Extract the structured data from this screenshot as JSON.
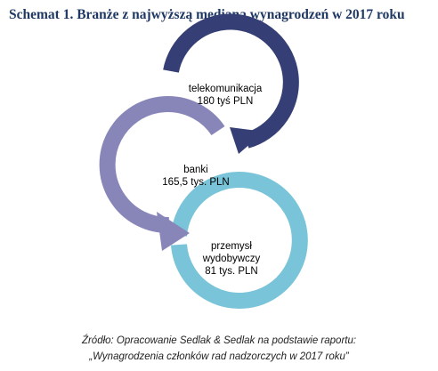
{
  "title": "Schemat 1. Branże z najwyższą medianą wynagrodzeń w 2017 roku",
  "stages": [
    {
      "lines": [
        "telekomunikacja",
        "180 tyś PLN"
      ],
      "color": "#353f75"
    },
    {
      "lines": [
        "banki",
        "165,5 tys. PLN"
      ],
      "color": "#8886b8"
    },
    {
      "lines": [
        "przemysł",
        "wydobywczy",
        "81 tys. PLN"
      ],
      "color": "#79c4d8"
    }
  ],
  "source": {
    "line1": "Źródło: Opracowanie Sedlak & Sedlak na podstawie raportu:",
    "line2": "„Wynagrodzenia członków rad nadzorczych w 2017 roku”"
  }
}
